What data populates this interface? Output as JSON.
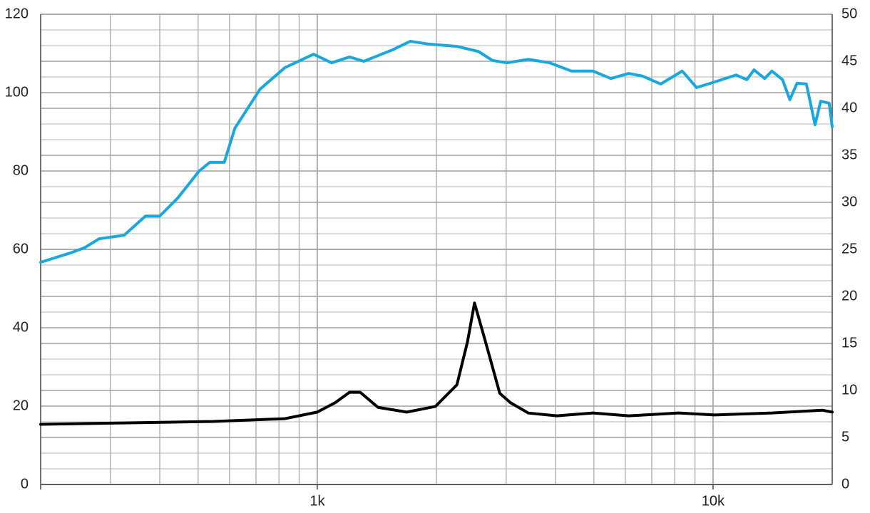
{
  "chart_data": {
    "type": "line",
    "xscale": "log",
    "grid": true,
    "minor_grid": true,
    "xlim": [
      200,
      20000
    ],
    "xticks": [
      {
        "value": 1000,
        "label": "1k"
      },
      {
        "value": 10000,
        "label": "10k"
      }
    ],
    "ylim": [
      0,
      120
    ],
    "yticks": [
      0,
      20,
      40,
      60,
      80,
      100,
      120
    ],
    "y2lim": [
      0,
      50
    ],
    "y2ticks": [
      0,
      5,
      10,
      15,
      20,
      25,
      30,
      35,
      40,
      45,
      50
    ],
    "series": [
      {
        "color": "#1aa7de",
        "axis": "y",
        "x": [
          200,
          238,
          258,
          281,
          325,
          368,
          400,
          444,
          503,
          535,
          582,
          619,
          717,
          829,
          979,
          1087,
          1206,
          1311,
          1548,
          1718,
          1907,
          2253,
          2553,
          2774,
          3012,
          3413,
          3870,
          4387,
          4973,
          5519,
          6120,
          6646,
          7375,
          8358,
          9083,
          10080,
          11430,
          12170,
          12690,
          13500,
          14080,
          14980,
          15630,
          16300,
          17210,
          18100,
          18700,
          19650,
          20000
        ],
        "values": [
          56.7,
          59.1,
          60.4,
          62.7,
          63.6,
          68.5,
          68.5,
          73.1,
          80,
          82.2,
          82.2,
          90.9,
          100.9,
          106.4,
          109.8,
          107.6,
          109.1,
          108,
          110.9,
          113.1,
          112.4,
          111.8,
          110.5,
          108.2,
          107.6,
          108.5,
          107.6,
          105.5,
          105.5,
          103.6,
          104.9,
          104.2,
          102.2,
          105.5,
          101.3,
          102.7,
          104.5,
          103.3,
          105.8,
          103.6,
          105.5,
          103.3,
          98.2,
          102.4,
          102.2,
          91.8,
          97.8,
          97.3,
          91.3
        ]
      },
      {
        "color": "#000000",
        "axis": "y2",
        "x": [
          200,
          547,
          829,
          1000,
          1110,
          1206,
          1284,
          1424,
          1683,
          1988,
          2253,
          2397,
          2496,
          2656,
          2891,
          3076,
          3413,
          4030,
          4973,
          6120,
          8185,
          10080,
          14080,
          18860,
          20000
        ],
        "values": [
          6.4,
          6.7,
          7.0,
          7.7,
          8.7,
          9.8,
          9.8,
          8.2,
          7.7,
          8.3,
          10.6,
          15.2,
          19.3,
          15.3,
          9.7,
          8.7,
          7.6,
          7.3,
          7.6,
          7.3,
          7.6,
          7.4,
          7.6,
          7.9,
          7.7
        ]
      }
    ]
  }
}
